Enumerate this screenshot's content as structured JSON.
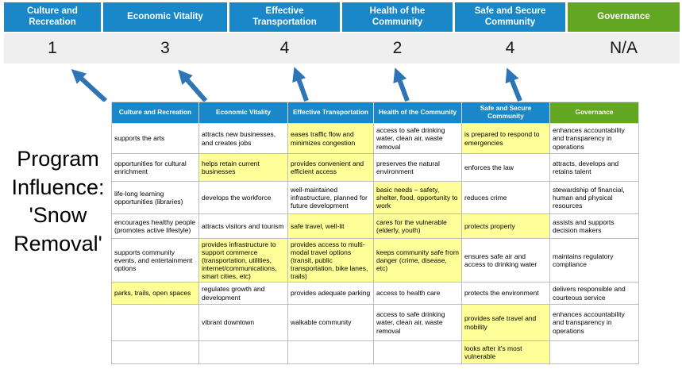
{
  "slide_title": "Program\nInfluence:\n'Snow\nRemoval'",
  "scoreboard": {
    "columns": [
      {
        "label": "Culture and Recreation",
        "score": "1",
        "theme": "blue"
      },
      {
        "label": "Economic Vitality",
        "score": "3",
        "theme": "blue"
      },
      {
        "label": "Effective Transportation",
        "score": "4",
        "theme": "blue"
      },
      {
        "label": "Health of the Community",
        "score": "2",
        "theme": "blue"
      },
      {
        "label": "Safe and Secure Community",
        "score": "4",
        "theme": "blue"
      },
      {
        "label": "Governance",
        "score": "N/A",
        "theme": "green"
      }
    ]
  },
  "icons": {
    "score_arrow": "up-arrow"
  },
  "table": {
    "headers": [
      {
        "label": "Culture and Recreation",
        "theme": "blue"
      },
      {
        "label": "Economic Vitality",
        "theme": "blue"
      },
      {
        "label": "Effective Transportation",
        "theme": "blue"
      },
      {
        "label": "Health of the Community",
        "theme": "blue"
      },
      {
        "label": "Safe and Secure Community",
        "theme": "blue"
      },
      {
        "label": "Governance",
        "theme": "green"
      }
    ],
    "rows": [
      [
        {
          "text": "supports the arts",
          "highlight": false
        },
        {
          "text": "attracts new businesses, and creates jobs",
          "highlight": false
        },
        {
          "text": "eases traffic flow and minimizes congestion",
          "highlight": true
        },
        {
          "text": "access to safe drinking water, clean air, waste removal",
          "highlight": false
        },
        {
          "text": "is prepared to respond to emergencies",
          "highlight": true
        },
        {
          "text": "enhances accountability and transparency in operations",
          "highlight": false
        }
      ],
      [
        {
          "text": "opportunities for cultural enrichment",
          "highlight": false
        },
        {
          "text": "helps retain current businesses",
          "highlight": true
        },
        {
          "text": "provides convenient and efficient access",
          "highlight": true
        },
        {
          "text": "preserves the natural environment",
          "highlight": false
        },
        {
          "text": "enforces the law",
          "highlight": false
        },
        {
          "text": "attracts, develops and retains talent",
          "highlight": false
        }
      ],
      [
        {
          "text": "life-long learning opportunities (libraries)",
          "highlight": false
        },
        {
          "text": "develops the workforce",
          "highlight": false
        },
        {
          "text": "well-maintained infrastructure, planned for future development",
          "highlight": false
        },
        {
          "text": "basic needs – safety, shelter, food, opportunity to work",
          "highlight": true
        },
        {
          "text": "reduces crime",
          "highlight": false
        },
        {
          "text": "stewardship of financial, human and physical resources",
          "highlight": false
        }
      ],
      [
        {
          "text": "encourages healthy people (promotes active lifestyle)",
          "highlight": false
        },
        {
          "text": "attracts visitors and tourism",
          "highlight": false
        },
        {
          "text": "safe travel, well-lit",
          "highlight": true
        },
        {
          "text": "cares for the vulnerable (elderly, youth)",
          "highlight": true
        },
        {
          "text": "protects property",
          "highlight": true
        },
        {
          "text": "assists and supports decision makers",
          "highlight": false
        }
      ],
      [
        {
          "text": "supports community events, and entertainment options",
          "highlight": false
        },
        {
          "text": "provides infrastructure to support commerce (transportation, utilities, internet/communications, smart cities, etc)",
          "highlight": true
        },
        {
          "text": "provides access to multi-modal travel options (transit, public transportation, bike lanes, trails)",
          "highlight": true
        },
        {
          "text": "keeps community safe from danger (crime, disease, etc)",
          "highlight": true
        },
        {
          "text": "ensures safe air and access to drinking water",
          "highlight": false
        },
        {
          "text": "maintains regulatory compliance",
          "highlight": false
        }
      ],
      [
        {
          "text": "parks, trails, open spaces",
          "highlight": true
        },
        {
          "text": "regulates growth and development",
          "highlight": false
        },
        {
          "text": "provides adequate parking",
          "highlight": false
        },
        {
          "text": "access to health care",
          "highlight": false
        },
        {
          "text": "protects the environment",
          "highlight": false
        },
        {
          "text": "delivers responsible and courteous service",
          "highlight": false
        }
      ],
      [
        {
          "text": "",
          "highlight": false
        },
        {
          "text": "vibrant downtown",
          "highlight": false
        },
        {
          "text": "walkable community",
          "highlight": false
        },
        {
          "text": "access to safe drinking water, clean air, waste removal",
          "highlight": false
        },
        {
          "text": "provides safe travel and mobility",
          "highlight": true
        },
        {
          "text": "enhances accountability and transparency in operations",
          "highlight": false
        }
      ],
      [
        {
          "text": "",
          "highlight": false
        },
        {
          "text": "",
          "highlight": false
        },
        {
          "text": "",
          "highlight": false
        },
        {
          "text": "",
          "highlight": false
        },
        {
          "text": "looks after it's most vulnerable",
          "highlight": true
        },
        {
          "text": "",
          "highlight": false
        }
      ]
    ]
  },
  "colors": {
    "header_blue": "#1987c8",
    "header_green": "#62a621",
    "highlight_yellow": "#ffff99",
    "score_strip_bg": "#efefef",
    "arrow_blue": "#2e75b6",
    "table_border": "#bdbdbd"
  }
}
